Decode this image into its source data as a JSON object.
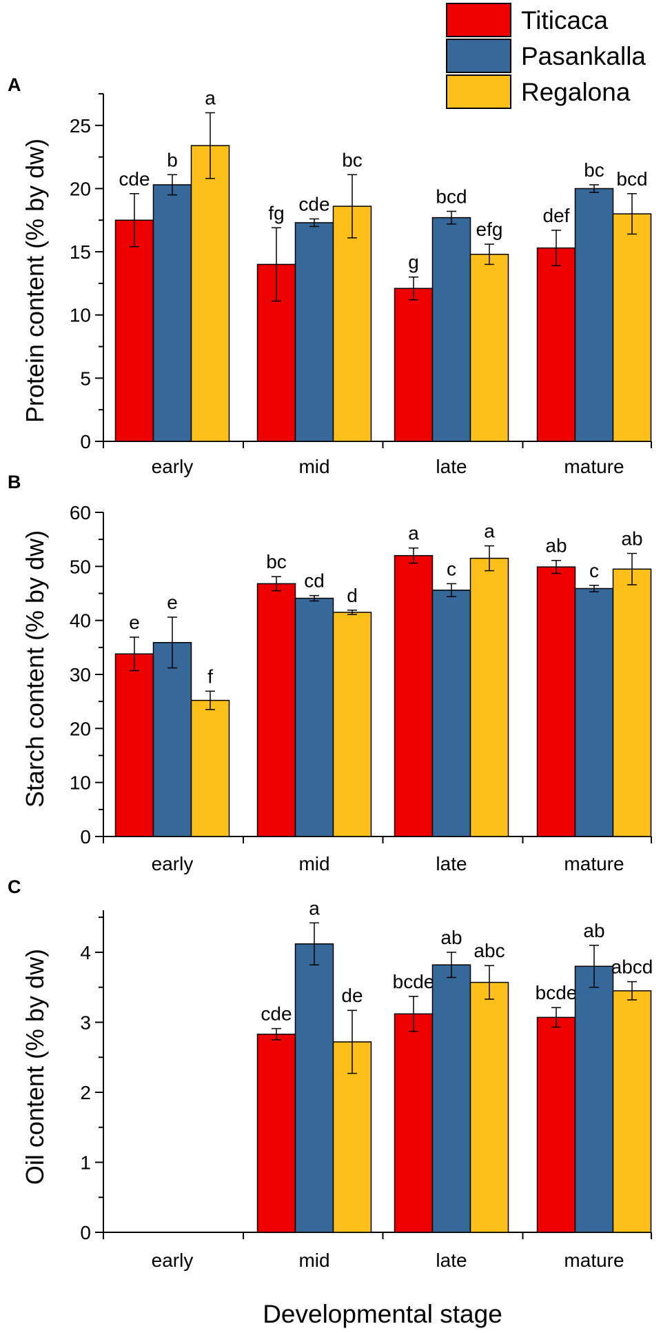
{
  "legend": [
    {
      "name": "Titicaca",
      "color": "#ee0000"
    },
    {
      "name": "Pasankalla",
      "color": "#36699a"
    },
    {
      "name": "Regalona",
      "color": "#fdc01a"
    }
  ],
  "xlabel": "Developmental stage",
  "chart_data": [
    {
      "panel": "A",
      "type": "bar",
      "categories": [
        "early",
        "mid",
        "late",
        "mature"
      ],
      "ylabel": "Protein content (% by dw)",
      "ylim": [
        0,
        27.5
      ],
      "yticks": [
        0,
        5,
        10,
        15,
        20,
        25
      ],
      "series": [
        {
          "name": "Titicaca",
          "values": [
            17.5,
            14.0,
            12.1,
            15.3
          ],
          "errors": [
            2.1,
            2.9,
            0.9,
            1.4
          ],
          "labels": [
            "cde",
            "fg",
            "g",
            "def"
          ]
        },
        {
          "name": "Pasankalla",
          "values": [
            20.3,
            17.3,
            17.7,
            20.0
          ],
          "errors": [
            0.8,
            0.3,
            0.5,
            0.3
          ],
          "labels": [
            "b",
            "cde",
            "bcd",
            "bc"
          ]
        },
        {
          "name": "Regalona",
          "values": [
            23.4,
            18.6,
            14.8,
            18.0
          ],
          "errors": [
            2.6,
            2.5,
            0.8,
            1.6
          ],
          "labels": [
            "a",
            "bc",
            "efg",
            "bcd"
          ]
        }
      ]
    },
    {
      "panel": "B",
      "type": "bar",
      "categories": [
        "early",
        "mid",
        "late",
        "mature"
      ],
      "ylabel": "Starch content (% by dw)",
      "ylim": [
        0,
        60
      ],
      "yticks": [
        0,
        10,
        20,
        30,
        40,
        50,
        60
      ],
      "series": [
        {
          "name": "Titicaca",
          "values": [
            33.8,
            46.8,
            52.0,
            49.9
          ],
          "errors": [
            3.1,
            1.3,
            1.4,
            1.2
          ],
          "labels": [
            "e",
            "bc",
            "a",
            "ab"
          ]
        },
        {
          "name": "Pasankalla",
          "values": [
            35.9,
            44.1,
            45.6,
            45.9
          ],
          "errors": [
            4.7,
            0.5,
            1.2,
            0.6
          ],
          "labels": [
            "e",
            "cd",
            "c",
            "c"
          ]
        },
        {
          "name": "Regalona",
          "values": [
            25.2,
            41.5,
            51.5,
            49.5
          ],
          "errors": [
            1.7,
            0.4,
            2.3,
            2.9
          ],
          "labels": [
            "f",
            "d",
            "a",
            "ab"
          ]
        }
      ]
    },
    {
      "panel": "C",
      "type": "bar",
      "categories": [
        "early",
        "mid",
        "late",
        "mature"
      ],
      "ylabel": "Oil content (% by dw)",
      "ylim": [
        0,
        4.6
      ],
      "yticks": [
        0,
        1,
        2,
        3,
        4
      ],
      "series": [
        {
          "name": "Titicaca",
          "values": [
            null,
            2.83,
            3.12,
            3.07
          ],
          "errors": [
            null,
            0.08,
            0.25,
            0.14
          ],
          "labels": [
            "",
            "cde",
            "bcde",
            "bcde"
          ]
        },
        {
          "name": "Pasankalla",
          "values": [
            null,
            4.12,
            3.82,
            3.8
          ],
          "errors": [
            null,
            0.3,
            0.18,
            0.3
          ],
          "labels": [
            "",
            "a",
            "ab",
            "ab"
          ]
        },
        {
          "name": "Regalona",
          "values": [
            null,
            2.72,
            3.57,
            3.45
          ],
          "errors": [
            null,
            0.45,
            0.24,
            0.13
          ],
          "labels": [
            "",
            "de",
            "abc",
            "abcd"
          ]
        }
      ]
    }
  ]
}
